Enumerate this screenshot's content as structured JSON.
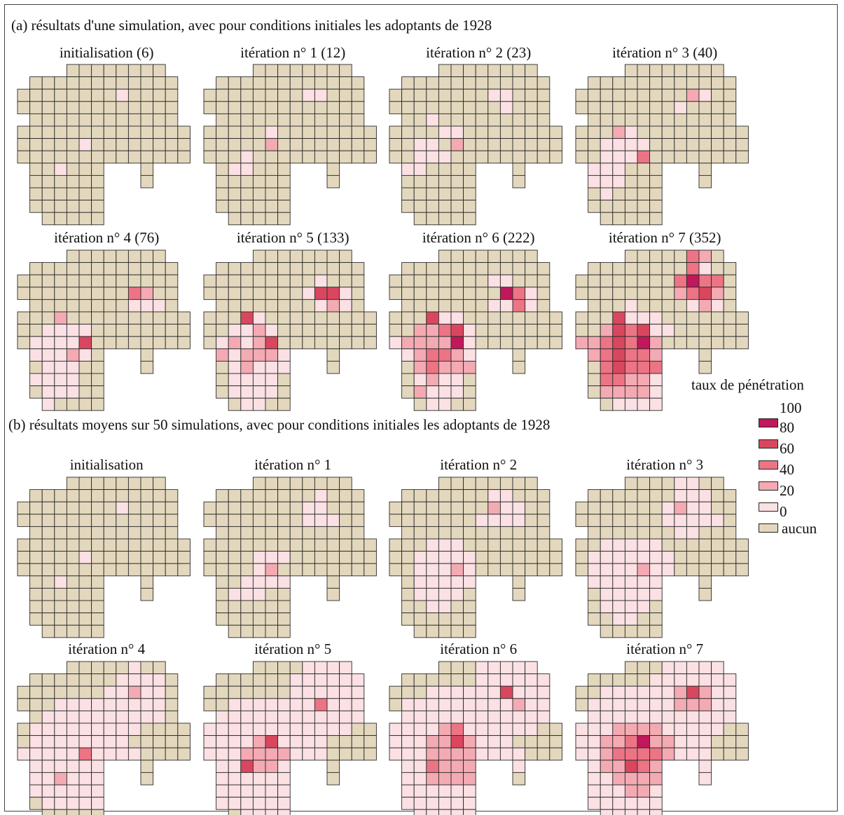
{
  "section_a": {
    "title": "(a) résultats d'une simulation, avec pour conditions initiales les adoptants de 1928",
    "panels": [
      {
        "title": "initialisation (6)",
        "cells": {
          "8,2": 1,
          "5,6": 1,
          "3,8": 1
        }
      },
      {
        "title": "itération n° 1 (12)",
        "cells": {
          "8,2": 1,
          "9,2": 1,
          "5,5": 1,
          "5,6": 2,
          "3,7": 1,
          "3,8": 1,
          "2,8": 1
        }
      },
      {
        "title": "itération n° 2 (23)",
        "cells": {
          "9,2": 1,
          "8,2": 1,
          "9,3": 1,
          "3,4": 1,
          "5,5": 1,
          "5,6": 2,
          "3,6": 1,
          "2,6": 1,
          "2,7": 1,
          "3,7": 1,
          "4,7": 1,
          "1,8": 1,
          "2,8": 1,
          "4,5": 1
        }
      },
      {
        "title": "itération n° 3 (40)",
        "cells": {
          "9,2": 2,
          "10,2": 1,
          "8,3": 1,
          "3,5": 2,
          "2,6": 1,
          "3,6": 1,
          "4,6": 1,
          "5,6": 1,
          "5,7": 3,
          "2,7": 1,
          "3,7": 1,
          "4,7": 1,
          "1,8": 1,
          "2,8": 1,
          "3,8": 1,
          "1,9": 1,
          "2,9": 1,
          "3,9": 1,
          "2,10": 1,
          "4,5": 1
        }
      },
      {
        "title": "itération n° 4 (76)",
        "cells": {
          "9,3": 3,
          "10,3": 2,
          "9,4": 1,
          "10,4": 1,
          "11,4": 1,
          "3,5": 2,
          "2,6": 1,
          "3,6": 1,
          "4,6": 1,
          "5,6": 1,
          "1,7": 1,
          "2,7": 1,
          "3,7": 1,
          "4,7": 1,
          "5,7": 4,
          "1,8": 1,
          "2,8": 1,
          "3,8": 1,
          "4,8": 2,
          "5,8": 1,
          "2,9": 1,
          "3,9": 1,
          "4,9": 1,
          "7,9": 1,
          "1,10": 1,
          "2,10": 1,
          "3,10": 1,
          "4,10": 1,
          "2,11": 1,
          "3,11": 1,
          "4,11": 1,
          "2,12": 1
        }
      },
      {
        "title": "itération n° 5 (133)",
        "cells": {
          "9,2": 1,
          "8,3": 1,
          "9,3": 4,
          "10,3": 4,
          "11,3": 1,
          "9,4": 1,
          "10,4": 2,
          "11,4": 1,
          "3,5": 4,
          "4,5": 1,
          "2,6": 1,
          "3,6": 1,
          "4,6": 2,
          "5,6": 1,
          "1,7": 1,
          "2,7": 2,
          "3,7": 1,
          "4,7": 2,
          "5,7": 4,
          "1,8": 2,
          "2,8": 1,
          "3,8": 2,
          "4,8": 2,
          "5,8": 2,
          "6,8": 1,
          "2,9": 1,
          "3,9": 2,
          "4,9": 1,
          "5,9": 1,
          "6,9": 1,
          "7,9": 1,
          "2,10": 1,
          "3,10": 1,
          "4,10": 1,
          "5,10": 1,
          "2,11": 1,
          "3,11": 1,
          "4,11": 1,
          "5,11": 1,
          "3,12": 1,
          "4,12": 1
        }
      },
      {
        "title": "itération n° 6 (222)",
        "cells": {
          "8,2": 1,
          "9,2": 1,
          "9,3": 5,
          "10,3": 3,
          "11,3": 1,
          "8,4": 1,
          "9,4": 1,
          "10,4": 3,
          "11,4": 1,
          "3,5": 4,
          "4,5": 1,
          "5,5": 1,
          "2,6": 2,
          "3,6": 2,
          "4,6": 3,
          "5,6": 4,
          "6,6": 1,
          "0,7": 1,
          "1,7": 2,
          "2,7": 2,
          "3,7": 2,
          "4,7": 2,
          "5,7": 5,
          "6,7": 1,
          "1,8": 1,
          "2,8": 2,
          "3,8": 3,
          "4,8": 3,
          "5,8": 2,
          "6,8": 1,
          "2,9": 2,
          "3,9": 3,
          "4,9": 2,
          "5,9": 2,
          "6,9": 2,
          "7,9": 2,
          "2,10": 1,
          "3,10": 2,
          "4,10": 1,
          "5,10": 1,
          "2,11": 2,
          "3,11": 1,
          "4,11": 1,
          "5,11": 1,
          "3,12": 1,
          "4,12": 1
        }
      },
      {
        "title": "itération n° 7 (352)",
        "cells": {
          "9,0": 3,
          "10,0": 2,
          "9,1": 3,
          "10,1": 1,
          "8,2": 3,
          "9,2": 5,
          "10,2": 3,
          "11,2": 3,
          "8,3": 2,
          "9,3": 3,
          "10,3": 4,
          "11,3": 2,
          "9,4": 1,
          "10,4": 2,
          "11,4": 1,
          "4,4": 1,
          "3,5": 4,
          "4,5": 1,
          "5,5": 1,
          "6,5": 1,
          "2,6": 2,
          "3,6": 4,
          "4,6": 3,
          "5,6": 4,
          "6,6": 1,
          "7,6": 1,
          "0,7": 2,
          "1,7": 2,
          "2,7": 3,
          "3,7": 4,
          "4,7": 3,
          "5,7": 5,
          "6,7": 2,
          "1,8": 2,
          "2,8": 3,
          "3,8": 4,
          "4,8": 3,
          "5,8": 3,
          "6,8": 2,
          "7,8": 1,
          "2,9": 3,
          "3,9": 4,
          "4,9": 3,
          "5,9": 3,
          "6,9": 3,
          "7,9": 2,
          "2,10": 3,
          "3,10": 3,
          "4,10": 2,
          "5,10": 2,
          "6,10": 1,
          "2,11": 2,
          "3,11": 2,
          "4,11": 2,
          "5,11": 2,
          "6,11": 1,
          "3,12": 1,
          "4,12": 1,
          "5,12": 1,
          "6,12": 1
        }
      }
    ]
  },
  "section_b": {
    "title": "(b) résultats moyens sur 50 simulations, avec pour conditions initiales les adoptants de 1928",
    "panels": [
      {
        "title": "initialisation",
        "cells": {
          "8,2": 1,
          "5,6": 1,
          "3,8": 1
        }
      },
      {
        "title": "itération n° 1",
        "cells": {
          "9,1": 1,
          "8,2": 1,
          "9,2": 1,
          "8,3": 1,
          "9,3": 1,
          "10,3": 1,
          "4,6": 1,
          "5,6": 1,
          "6,6": 1,
          "4,7": 1,
          "5,7": 2,
          "3,8": 1,
          "4,8": 1,
          "5,8": 1,
          "2,9": 1,
          "3,9": 1,
          "4,9": 1,
          "6,8": 1
        }
      },
      {
        "title": "itération n° 2",
        "cells": {
          "8,1": 1,
          "9,1": 1,
          "8,2": 2,
          "9,2": 1,
          "10,2": 1,
          "7,3": 1,
          "8,3": 1,
          "9,3": 1,
          "10,3": 1,
          "3,5": 1,
          "4,5": 1,
          "5,5": 1,
          "2,6": 1,
          "3,6": 1,
          "4,6": 1,
          "5,6": 1,
          "6,6": 1,
          "2,7": 1,
          "3,7": 1,
          "4,7": 1,
          "5,7": 2,
          "6,7": 1,
          "2,8": 1,
          "3,8": 1,
          "4,8": 1,
          "5,8": 1,
          "6,8": 1,
          "2,9": 1,
          "3,9": 1,
          "4,9": 1,
          "5,9": 1,
          "3,10": 1,
          "4,10": 1
        }
      },
      {
        "title": "itération n° 3",
        "cells": {
          "8,0": 1,
          "9,0": 1,
          "8,1": 1,
          "9,1": 1,
          "10,1": 1,
          "7,2": 1,
          "8,2": 2,
          "9,2": 1,
          "10,2": 1,
          "7,3": 1,
          "8,3": 1,
          "9,3": 1,
          "10,3": 1,
          "11,3": 1,
          "8,4": 1,
          "9,4": 1,
          "2,5": 1,
          "3,5": 1,
          "4,5": 1,
          "5,5": 1,
          "6,5": 1,
          "1,6": 1,
          "2,6": 1,
          "3,6": 1,
          "4,6": 1,
          "5,6": 1,
          "6,6": 1,
          "7,6": 1,
          "1,7": 1,
          "2,7": 1,
          "3,7": 1,
          "4,7": 1,
          "5,7": 2,
          "6,7": 1,
          "7,7": 1,
          "1,8": 1,
          "2,8": 1,
          "3,8": 1,
          "4,8": 1,
          "5,8": 1,
          "6,8": 1,
          "2,9": 1,
          "3,9": 1,
          "4,9": 1,
          "5,9": 1,
          "6,9": 1,
          "2,10": 1,
          "3,10": 1,
          "4,10": 1,
          "5,10": 1,
          "3,11": 1,
          "4,11": 1
        }
      }
    ]
  },
  "section_b_row2": {
    "panels": [
      {
        "title": "itération n° 4",
        "cells": "dense1"
      },
      {
        "title": "itération n° 5",
        "cells": "dense2"
      },
      {
        "title": "itération n° 6",
        "cells": "dense3"
      },
      {
        "title": "itération n° 7",
        "cells": "dense4"
      }
    ]
  },
  "legend": {
    "title": "taux de pénétration",
    "labels": [
      "100",
      "80",
      "60",
      "40",
      "20",
      "0",
      "aucun"
    ],
    "colors": {
      "aucun": "#e3d8bd",
      "class0_20": "#fbe0e4",
      "class20_40": "#f4aab3",
      "class40_60": "#ec7484",
      "class60_80": "#d9475e",
      "class80_100": "#c0185a"
    }
  }
}
